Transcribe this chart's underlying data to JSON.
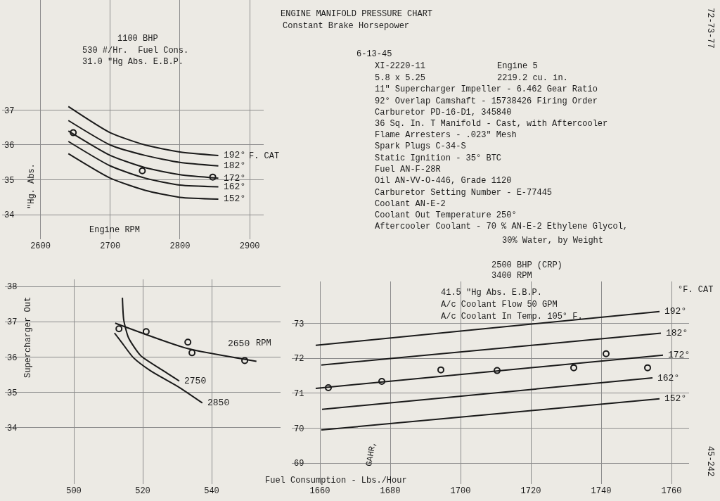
{
  "chart_data": [
    {
      "type": "line",
      "xlabel": "Engine RPM",
      "ylabel": "\"Hg. Abs.",
      "xlim": [
        2545,
        2920
      ],
      "xticks": [
        2600,
        2700,
        2800,
        2900
      ],
      "ylim": [
        33.3,
        40.15
      ],
      "yticks": [
        34,
        35,
        36,
        37
      ],
      "grid": true,
      "legend": false,
      "series": [
        {
          "name": "192°",
          "color": "#1a1a1a",
          "x": [
            2640,
            2700,
            2750,
            2800,
            2855
          ],
          "values": [
            37.1,
            36.35,
            36.0,
            35.8,
            35.7
          ]
        },
        {
          "name": "182°",
          "color": "#1a1a1a",
          "x": [
            2640,
            2700,
            2750,
            2800,
            2855
          ],
          "values": [
            36.7,
            36.0,
            35.7,
            35.5,
            35.4
          ]
        },
        {
          "name": "172°",
          "color": "#1a1a1a",
          "x": [
            2640,
            2700,
            2750,
            2800,
            2855
          ],
          "values": [
            36.4,
            35.7,
            35.35,
            35.15,
            35.05
          ]
        },
        {
          "name": "162°",
          "color": "#1a1a1a",
          "x": [
            2640,
            2700,
            2750,
            2800,
            2855
          ],
          "values": [
            36.1,
            35.4,
            35.05,
            34.85,
            34.8
          ]
        },
        {
          "name": "152°",
          "color": "#1a1a1a",
          "x": [
            2640,
            2700,
            2750,
            2800,
            2855
          ],
          "values": [
            35.75,
            35.05,
            34.7,
            34.5,
            34.45
          ]
        },
        {
          "type": "scatter",
          "marker": "circle",
          "color": "#1a1a1a",
          "x": [
            2647,
            2746,
            2847
          ],
          "values": [
            36.35,
            35.26,
            35.08
          ]
        }
      ],
      "annotations": [
        "1100 BHP",
        "530 #/Hr.  Fuel Cons.",
        "31.0 \"Hg Abs. E.B.P.",
        "F. CAT"
      ]
    },
    {
      "type": "other",
      "title": "ENGINE MANIFOLD PRESSURE CHART",
      "subtitle": "Constant Brake Horsepower",
      "annotations": [
        "6-13-45",
        "XI-2220-11",
        "Engine 5",
        "5.8 x 5.25",
        "2219.2 cu. in.",
        "11\" Supercharger Impeller - 6.462 Gear Ratio",
        "92° Overlap Camshaft - 15738426 Firing Order",
        "Carburetor PD-16-D1, 345840",
        "36 Sq. In. T Manifold - Cast, with Aftercooler",
        "Flame Arresters - .023\" Mesh",
        "Spark Plugs C-34-S",
        "Static Ignition - 35° BTC",
        "Fuel AN-F-28R",
        "Oil AN-VV-O-446, Grade 1120",
        "Carburetor Setting Number - E-77445",
        "Coolant AN-E-2",
        "Coolant Out Temperature 250°",
        "Aftercooler Coolant - 70 % AN-E-2 Ethylene Glycol,",
        "30% Water, by Weight",
        "72-73-77",
        "45-242"
      ]
    },
    {
      "type": "line",
      "ylabel": "Supercharger Out",
      "xlim": [
        480,
        560
      ],
      "xticks": [
        500,
        520,
        540
      ],
      "ylim": [
        32.4,
        38.2
      ],
      "yticks": [
        34,
        35,
        36,
        37,
        38
      ],
      "grid": true,
      "legend": false,
      "series": [
        {
          "name": "2650",
          "color": "#1a1a1a",
          "x": [
            512,
            533,
            553
          ],
          "values": [
            36.96,
            36.24,
            35.88
          ]
        },
        {
          "name": "2750",
          "color": "#1a1a1a",
          "x": [
            514.1,
            514.5,
            515.9,
            519.4,
            525.5,
            530.6
          ],
          "values": [
            37.68,
            37.04,
            36.54,
            36.04,
            35.64,
            35.32
          ]
        },
        {
          "name": "2850",
          "color": "#1a1a1a",
          "x": [
            511.8,
            513.7,
            517.3,
            522.4,
            530.6,
            537.3
          ],
          "values": [
            36.68,
            36.44,
            35.98,
            35.6,
            35.14,
            34.7
          ]
        },
        {
          "type": "scatter",
          "marker": "circle",
          "color": "#1a1a1a",
          "x": [
            513.1,
            521,
            533.1,
            534.3,
            549.6
          ],
          "values": [
            36.8,
            36.72,
            36.42,
            36.12,
            35.9
          ]
        }
      ],
      "annotations": [
        "RPM"
      ]
    },
    {
      "type": "line",
      "xlabel": "Fuel Consumption - Lbs./Hour",
      "xlim": [
        1652,
        1765
      ],
      "xticks": [
        1660,
        1680,
        1700,
        1720,
        1740,
        1760
      ],
      "ylim": [
        68.4,
        74.2
      ],
      "yticks": [
        69,
        70,
        71,
        72,
        73
      ],
      "grid": true,
      "legend": false,
      "series": [
        {
          "name": "192°",
          "color": "#1a1a1a",
          "x": [
            1658.8,
            1756.6
          ],
          "values": [
            72.37,
            73.34
          ]
        },
        {
          "name": "182°",
          "color": "#1a1a1a",
          "x": [
            1660.4,
            1757
          ],
          "values": [
            71.81,
            72.72
          ]
        },
        {
          "name": "172°",
          "color": "#1a1a1a",
          "x": [
            1658.8,
            1757.6
          ],
          "values": [
            71.14,
            72.09
          ]
        },
        {
          "name": "162°",
          "color": "#1a1a1a",
          "x": [
            1660.6,
            1754.6
          ],
          "values": [
            70.54,
            71.44
          ]
        },
        {
          "name": "152°",
          "color": "#1a1a1a",
          "x": [
            1660.4,
            1756.6
          ],
          "values": [
            69.95,
            70.84
          ]
        },
        {
          "type": "scatter",
          "marker": "circle",
          "color": "#1a1a1a",
          "x": [
            1662.4,
            1677.6,
            1694.4,
            1710.4,
            1732.2,
            1741.4,
            1753.2
          ],
          "values": [
            71.16,
            71.34,
            71.67,
            71.65,
            71.73,
            72.13,
            71.73
          ]
        }
      ],
      "annotations": [
        "2500 BHP (CRP)",
        "3400 RPM",
        "41.5 \"Hg Abs. E.B.P.",
        "A/c Coolant Flow 50 GPM",
        "A/c Coolant In Temp. 105° F.",
        "°F. CAT",
        "GAHR,"
      ]
    }
  ]
}
